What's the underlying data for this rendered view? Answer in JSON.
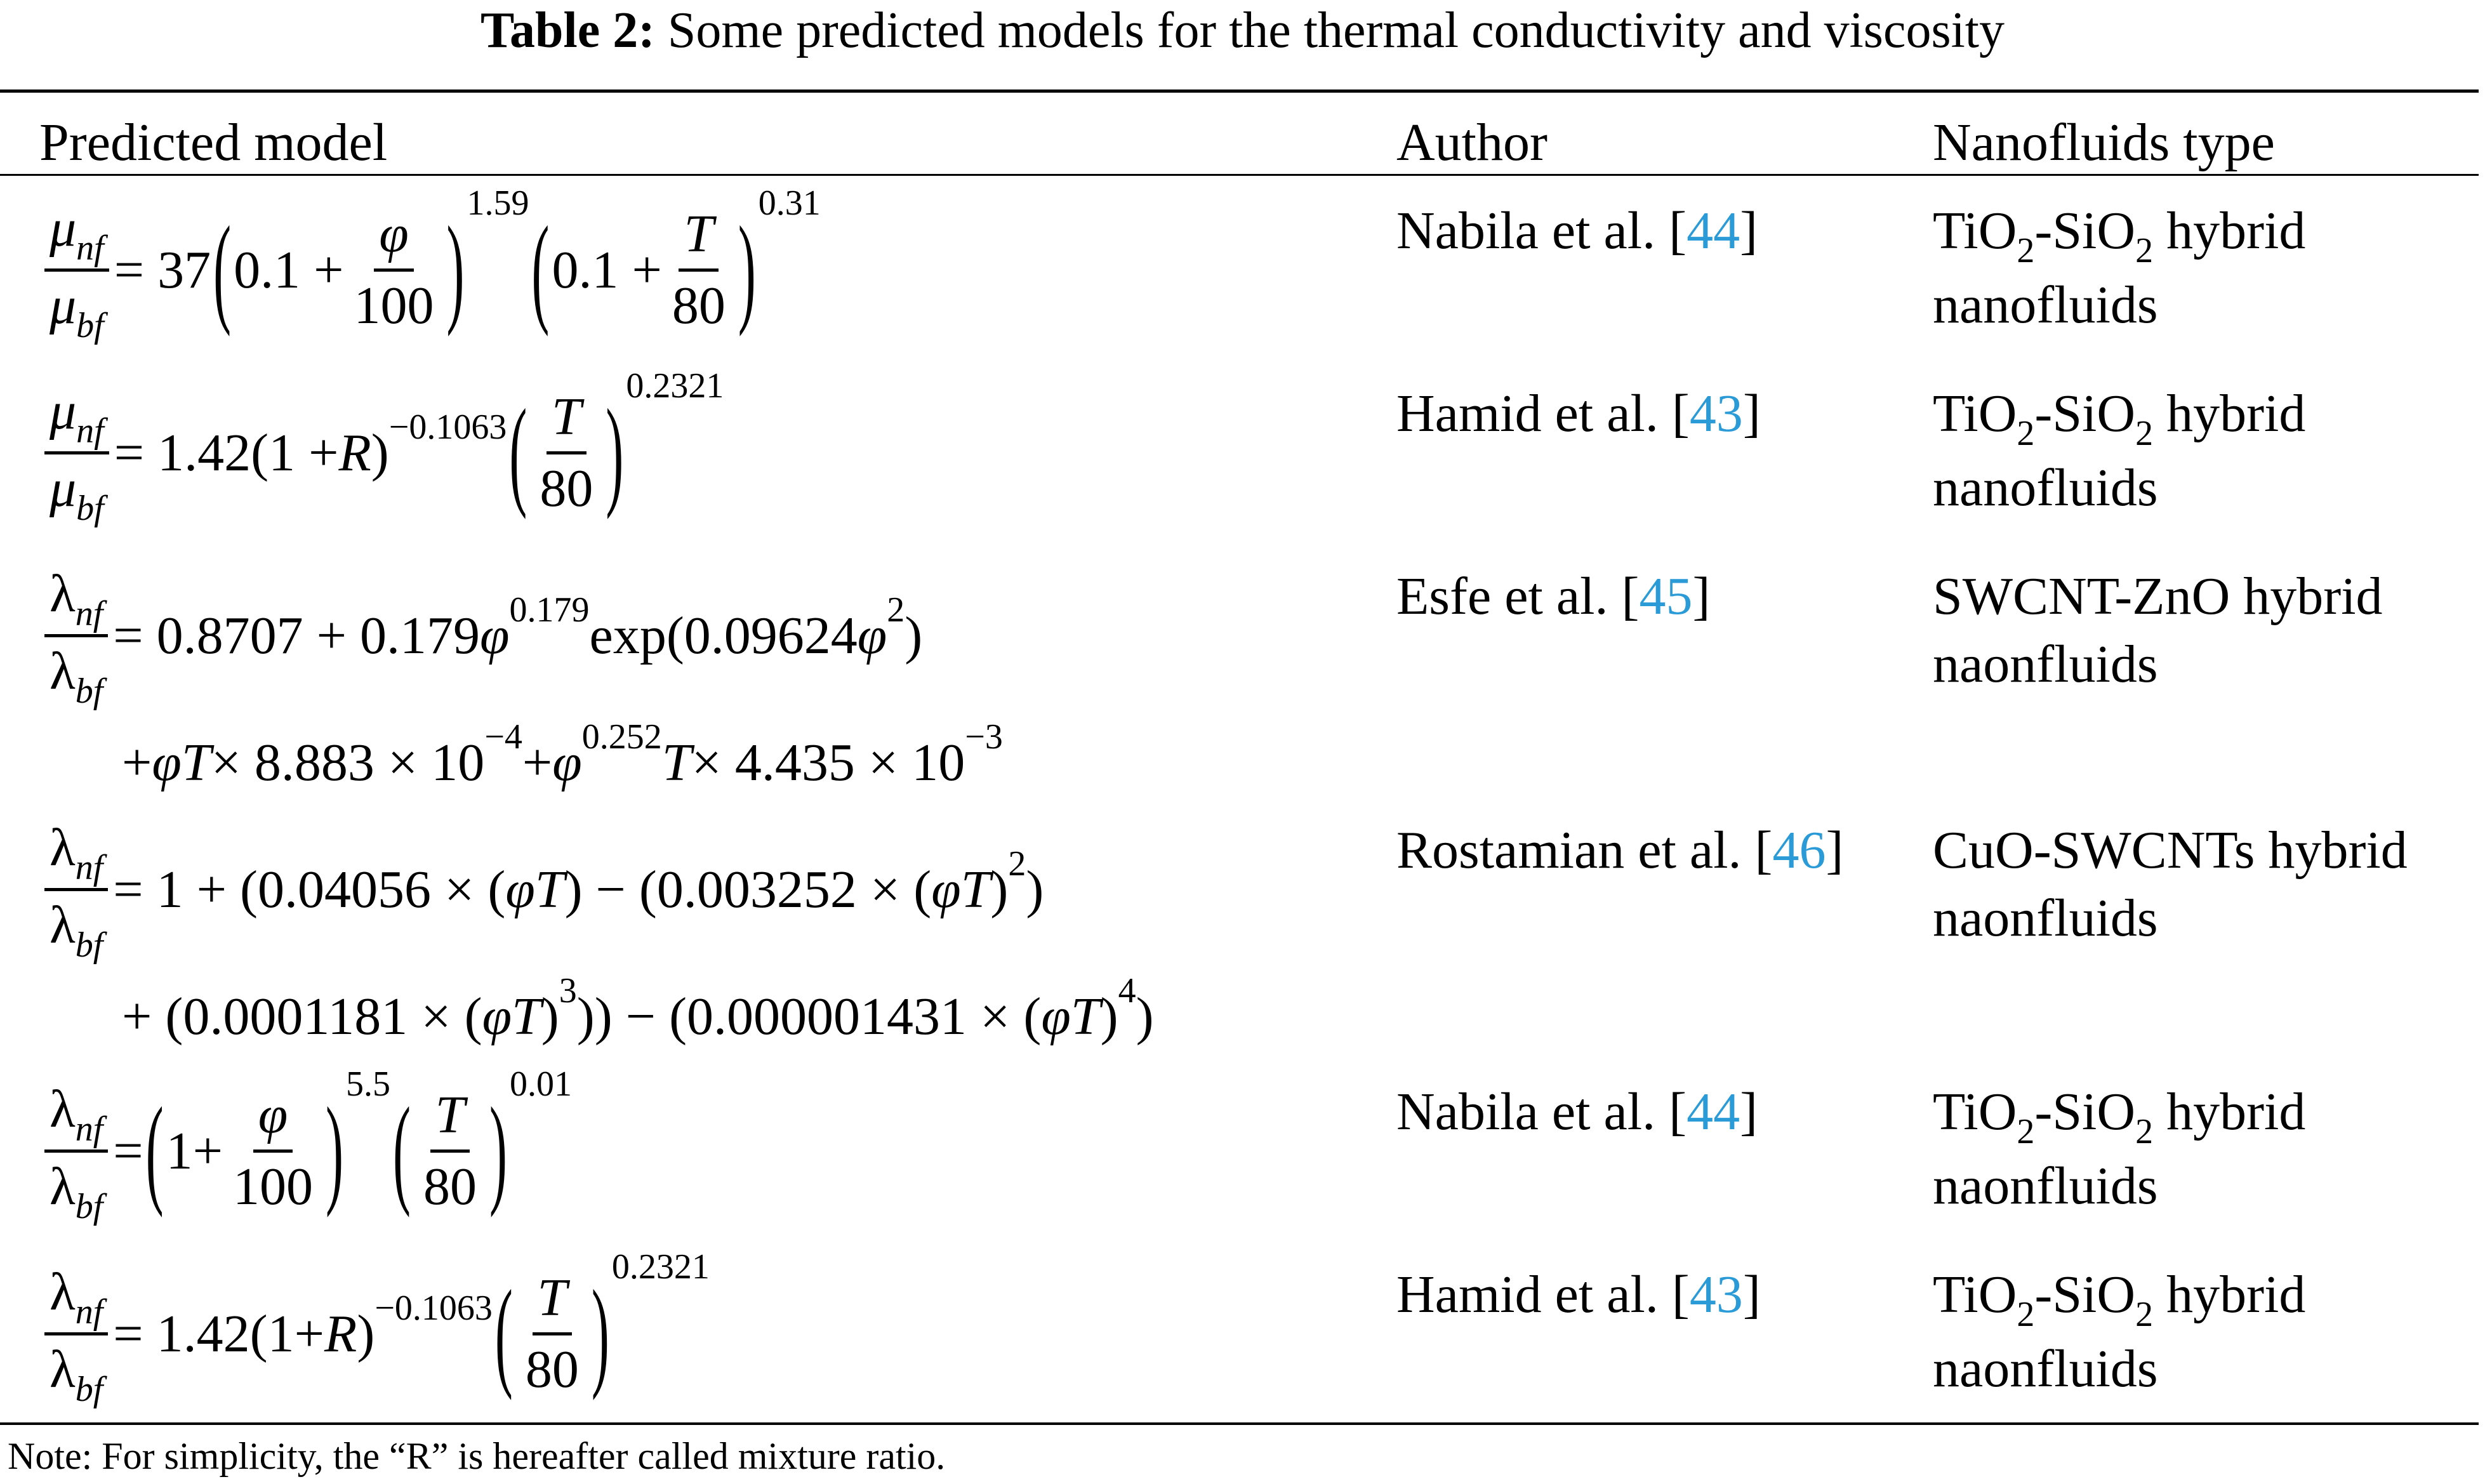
{
  "title": {
    "label": "Table 2:",
    "text": "Some predicted models for the thermal conductivity and viscosity"
  },
  "table": {
    "header": [
      "Predicted model",
      "Author",
      "Nanofluids type"
    ],
    "rows": [
      {
        "model": [
          [
            {
              "frac": [
                [
                  {
                    "i": "μ"
                  },
                  {
                    "isub": "nf"
                  }
                ],
                [
                  {
                    "i": "μ"
                  },
                  {
                    "isub": "bf"
                  }
                ]
              ]
            },
            {
              "r": " = 37"
            },
            {
              "big": "("
            },
            {
              "r": "0.1 + "
            },
            {
              "frac": [
                [
                  {
                    "i": "φ"
                  }
                ],
                [
                  {
                    "r": "100"
                  }
                ]
              ]
            },
            {
              "big": ")"
            },
            {
              "sup": "1.59"
            },
            {
              "big": "("
            },
            {
              "r": "0.1 + "
            },
            {
              "frac": [
                [
                  {
                    "i": "T"
                  }
                ],
                [
                  {
                    "r": "80"
                  }
                ]
              ]
            },
            {
              "big": ")"
            },
            {
              "sup": "0.31"
            }
          ]
        ],
        "author": [
          "Nabila et al. [",
          "44",
          "]"
        ],
        "type": [
          {
            "r": "TiO"
          },
          {
            "sub": "2"
          },
          {
            "r": "-SiO"
          },
          {
            "sub": "2"
          },
          {
            "r": " hybrid nanofluids"
          }
        ]
      },
      {
        "model": [
          [
            {
              "frac": [
                [
                  {
                    "i": "μ"
                  },
                  {
                    "isub": "nf"
                  }
                ],
                [
                  {
                    "i": "μ"
                  },
                  {
                    "isub": "bf"
                  }
                ]
              ]
            },
            {
              "r": " = 1.42(1 + "
            },
            {
              "i": "R"
            },
            {
              "r": ")"
            },
            {
              "sup": "−0.1063"
            },
            {
              "big": "("
            },
            {
              "frac": [
                [
                  {
                    "i": "T"
                  }
                ],
                [
                  {
                    "r": "80"
                  }
                ]
              ]
            },
            {
              "big": ")"
            },
            {
              "sup": "0.2321"
            }
          ]
        ],
        "author": [
          "Hamid et al. [",
          "43",
          "]"
        ],
        "type": [
          {
            "r": "TiO"
          },
          {
            "sub": "2"
          },
          {
            "r": "-SiO"
          },
          {
            "sub": "2"
          },
          {
            "r": " hybrid nanofluids"
          }
        ]
      },
      {
        "model": [
          [
            {
              "frac": [
                [
                  {
                    "r": "λ"
                  },
                  {
                    "isub": "nf"
                  }
                ],
                [
                  {
                    "r": "λ"
                  },
                  {
                    "isub": "bf"
                  }
                ]
              ]
            },
            {
              "r": " = 0.8707 + 0.179"
            },
            {
              "i": "φ"
            },
            {
              "sup": "0.179"
            },
            {
              "r": " exp(0.09624"
            },
            {
              "i": "φ"
            },
            {
              "sup": "2"
            },
            {
              "r": ")"
            }
          ],
          [
            {
              "r": "+ "
            },
            {
              "i": "φT"
            },
            {
              "r": " × 8.883 × 10"
            },
            {
              "sup": "−4"
            },
            {
              "r": " + "
            },
            {
              "i": "φ"
            },
            {
              "sup": "0.252"
            },
            {
              "i": "T"
            },
            {
              "r": " × 4.435 × 10"
            },
            {
              "sup": "−3"
            }
          ]
        ],
        "author": [
          "Esfe et al. [",
          "45",
          "]"
        ],
        "type": [
          {
            "r": "SWCNT-ZnO hybrid naonfluids"
          }
        ]
      },
      {
        "model": [
          [
            {
              "frac": [
                [
                  {
                    "r": "λ"
                  },
                  {
                    "isub": "nf"
                  }
                ],
                [
                  {
                    "r": "λ"
                  },
                  {
                    "isub": "bf"
                  }
                ]
              ]
            },
            {
              "r": " = 1 + (0.04056 × ("
            },
            {
              "i": "φT"
            },
            {
              "r": ") − (0.003252 × ("
            },
            {
              "i": "φT"
            },
            {
              "r": ")"
            },
            {
              "sup": "2"
            },
            {
              "r": ")"
            }
          ],
          [
            {
              "r": "+ (0.0001181 × ("
            },
            {
              "i": "φT"
            },
            {
              "r": ")"
            },
            {
              "sup": "3"
            },
            {
              "r": ")) − (0.000001431 × ("
            },
            {
              "i": "φT"
            },
            {
              "r": ")"
            },
            {
              "sup": "4"
            },
            {
              "r": ")"
            }
          ]
        ],
        "author": [
          "Rostamian et al. [",
          "46",
          "]"
        ],
        "type": [
          {
            "r": "CuO-SWCNTs hybrid naonfluids"
          }
        ]
      },
      {
        "model": [
          [
            {
              "frac": [
                [
                  {
                    "r": "λ"
                  },
                  {
                    "isub": "nf"
                  }
                ],
                [
                  {
                    "r": "λ"
                  },
                  {
                    "isub": "bf"
                  }
                ]
              ]
            },
            {
              "r": " = "
            },
            {
              "big": "("
            },
            {
              "r": "1+ "
            },
            {
              "frac": [
                [
                  {
                    "i": "φ"
                  }
                ],
                [
                  {
                    "r": "100"
                  }
                ]
              ]
            },
            {
              "big": ")"
            },
            {
              "sup": "5.5"
            },
            {
              "big": "("
            },
            {
              "frac": [
                [
                  {
                    "i": "T"
                  }
                ],
                [
                  {
                    "r": "80"
                  }
                ]
              ]
            },
            {
              "big": ")"
            },
            {
              "sup": "0.01"
            }
          ]
        ],
        "author": [
          "Nabila et al. [",
          "44",
          "]"
        ],
        "type": [
          {
            "r": "TiO"
          },
          {
            "sub": "2"
          },
          {
            "r": "-SiO"
          },
          {
            "sub": "2"
          },
          {
            "r": " hybrid naonfluids"
          }
        ]
      },
      {
        "model": [
          [
            {
              "frac": [
                [
                  {
                    "r": "λ"
                  },
                  {
                    "isub": "nf"
                  }
                ],
                [
                  {
                    "r": "λ"
                  },
                  {
                    "isub": "bf"
                  }
                ]
              ]
            },
            {
              "r": " = 1.42(1+ "
            },
            {
              "i": "R"
            },
            {
              "r": ")"
            },
            {
              "sup": "−0.1063"
            },
            {
              "big": "("
            },
            {
              "frac": [
                [
                  {
                    "i": "T"
                  }
                ],
                [
                  {
                    "r": "80"
                  }
                ]
              ]
            },
            {
              "big": ")"
            },
            {
              "sup": "0.2321"
            }
          ]
        ],
        "author": [
          "Hamid et al. [",
          "43",
          "]"
        ],
        "type": [
          {
            "r": "TiO"
          },
          {
            "sub": "2"
          },
          {
            "r": "-SiO"
          },
          {
            "sub": "2"
          },
          {
            "r": " hybrid naonfluids"
          }
        ]
      }
    ]
  },
  "note": "Note: For simplicity, the “R” is hereafter called mixture ratio."
}
